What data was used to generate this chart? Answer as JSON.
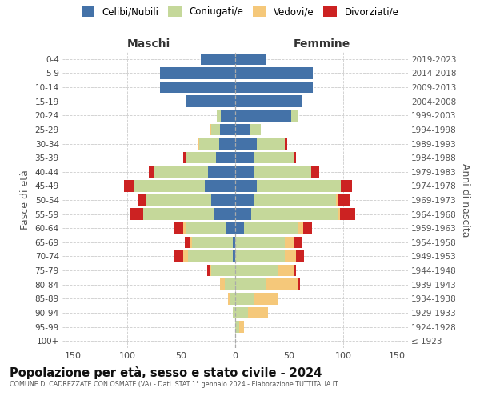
{
  "age_groups": [
    "100+",
    "95-99",
    "90-94",
    "85-89",
    "80-84",
    "75-79",
    "70-74",
    "65-69",
    "60-64",
    "55-59",
    "50-54",
    "45-49",
    "40-44",
    "35-39",
    "30-34",
    "25-29",
    "20-24",
    "15-19",
    "10-14",
    "5-9",
    "0-4"
  ],
  "birth_years": [
    "≤ 1923",
    "1924-1928",
    "1929-1933",
    "1934-1938",
    "1939-1943",
    "1944-1948",
    "1949-1953",
    "1954-1958",
    "1959-1963",
    "1964-1968",
    "1969-1973",
    "1974-1978",
    "1979-1983",
    "1984-1988",
    "1989-1993",
    "1994-1998",
    "1999-2003",
    "2004-2008",
    "2009-2013",
    "2014-2018",
    "2019-2023"
  ],
  "males_celibi": [
    0,
    0,
    0,
    0,
    0,
    0,
    2,
    2,
    8,
    20,
    22,
    28,
    25,
    18,
    15,
    14,
    13,
    45,
    70,
    70,
    32
  ],
  "males_coniugati": [
    0,
    0,
    2,
    5,
    10,
    22,
    42,
    38,
    38,
    65,
    60,
    65,
    50,
    28,
    18,
    8,
    4,
    0,
    0,
    0,
    0
  ],
  "males_vedovi": [
    0,
    0,
    0,
    2,
    4,
    2,
    4,
    2,
    2,
    0,
    0,
    0,
    0,
    0,
    2,
    2,
    0,
    0,
    0,
    0,
    0
  ],
  "males_divorziati": [
    0,
    0,
    0,
    0,
    0,
    2,
    8,
    5,
    8,
    12,
    8,
    10,
    5,
    2,
    0,
    0,
    0,
    0,
    0,
    0,
    0
  ],
  "females_nubili": [
    0,
    0,
    0,
    0,
    0,
    0,
    0,
    0,
    8,
    15,
    18,
    20,
    18,
    18,
    20,
    14,
    52,
    62,
    72,
    72,
    28
  ],
  "females_coniugate": [
    0,
    4,
    12,
    18,
    28,
    40,
    46,
    46,
    50,
    80,
    75,
    78,
    52,
    36,
    26,
    10,
    6,
    0,
    0,
    0,
    0
  ],
  "females_vedove": [
    0,
    4,
    18,
    22,
    30,
    14,
    10,
    8,
    5,
    2,
    2,
    0,
    0,
    0,
    0,
    0,
    0,
    0,
    0,
    0,
    0
  ],
  "females_divorziate": [
    0,
    0,
    0,
    0,
    2,
    2,
    8,
    8,
    8,
    14,
    12,
    10,
    8,
    2,
    2,
    0,
    0,
    0,
    0,
    0,
    0
  ],
  "color_celibi": "#4472a8",
  "color_coniugati": "#c5d89a",
  "color_vedovi": "#f5c87a",
  "color_divorziati": "#cc2222",
  "xlim": 160,
  "title": "Popolazione per età, sesso e stato civile - 2024",
  "subtitle": "COMUNE DI CADREZZATE CON OSMATE (VA) - Dati ISTAT 1° gennaio 2024 - Elaborazione TUTTITALIA.IT",
  "legend_labels": [
    "Celibi/Nubili",
    "Coniugati/e",
    "Vedovi/e",
    "Divorziati/e"
  ],
  "label_maschi": "Maschi",
  "label_femmine": "Femmine",
  "ylabel_left": "Fasce di età",
  "ylabel_right": "Anni di nascita",
  "bg_color": "#ffffff",
  "grid_color": "#cccccc"
}
